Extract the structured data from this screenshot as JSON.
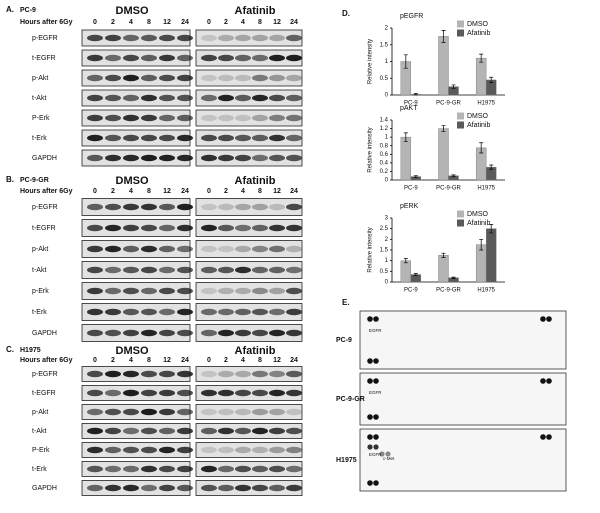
{
  "blot_panels": [
    {
      "letter": "A.",
      "cell_line": "PC-9",
      "hours_label": "Hours after 6Gy",
      "groups": [
        {
          "name": "DMSO",
          "hours": [
            "0",
            "2",
            "4",
            "8",
            "12",
            "24"
          ]
        },
        {
          "name": "Afatinib",
          "hours": [
            "0",
            "2",
            "4",
            "8",
            "12",
            "24"
          ]
        }
      ],
      "rows": [
        "p-EGFR",
        "t-EGFR",
        "p-Akt",
        "t-Akt",
        "P-Erk",
        "t-Erk",
        "GAPDH"
      ]
    },
    {
      "letter": "B.",
      "cell_line": "PC-9-GR",
      "hours_label": "Hours after 6Gy",
      "groups": [
        {
          "name": "DMSO",
          "hours": [
            "0",
            "2",
            "4",
            "8",
            "12",
            "24"
          ]
        },
        {
          "name": "Afatinib",
          "hours": [
            "0",
            "2",
            "4",
            "8",
            "12",
            "24"
          ]
        }
      ],
      "rows": [
        "p-EGFR",
        "t-EGFR",
        "p-Akt",
        "t-Akt",
        "p-Erk",
        "t-Erk",
        "GAPDH"
      ]
    },
    {
      "letter": "C.",
      "cell_line": "H1975",
      "hours_label": "Hours after 6Gy",
      "groups": [
        {
          "name": "DMSO",
          "hours": [
            "0",
            "2",
            "4",
            "8",
            "12",
            "24"
          ]
        },
        {
          "name": "Afatinib",
          "hours": [
            "0",
            "2",
            "4",
            "8",
            "12",
            "24"
          ]
        }
      ],
      "rows": [
        "p-EGFR",
        "t-EGFR",
        "p-Akt",
        "t-Akt",
        "P-Erk",
        "t-Erk",
        "GAPDH"
      ]
    }
  ],
  "panel_d_letter": "D.",
  "chart_data": [
    {
      "type": "bar",
      "title": "pEGFR",
      "y_label": "Relative intensity",
      "categories": [
        "PC-9",
        "PC-9-GR",
        "H1975"
      ],
      "series": [
        {
          "name": "DMSO",
          "color": "#b4b4b4",
          "values": [
            1,
            1.75,
            1.1
          ],
          "errors": [
            0.2,
            0.18,
            0.12
          ]
        },
        {
          "name": "Afatinib",
          "color": "#5a5a5a",
          "values": [
            0.02,
            0.25,
            0.45
          ],
          "errors": [
            0.02,
            0.05,
            0.08
          ]
        }
      ],
      "ylim": [
        0,
        2
      ],
      "yticks": [
        0,
        0.5,
        1,
        1.5,
        2
      ]
    },
    {
      "type": "bar",
      "title": "pAKT",
      "y_label": "Relative intensity",
      "categories": [
        "PC-9",
        "PC-9-GR",
        "H1975"
      ],
      "series": [
        {
          "name": "DMSO",
          "color": "#b4b4b4",
          "values": [
            1,
            1.2,
            0.75
          ],
          "errors": [
            0.1,
            0.07,
            0.12
          ]
        },
        {
          "name": "Afatinib",
          "color": "#5a5a5a",
          "values": [
            0.08,
            0.1,
            0.3
          ],
          "errors": [
            0.02,
            0.02,
            0.05
          ]
        }
      ],
      "ylim": [
        0,
        1.4
      ],
      "yticks": [
        0,
        0.2,
        0.4,
        0.6,
        0.8,
        1,
        1.2,
        1.4
      ]
    },
    {
      "type": "bar",
      "title": "pERK",
      "y_label": "Relative intensity",
      "categories": [
        "PC-9",
        "PC-9-GR",
        "H1975"
      ],
      "series": [
        {
          "name": "DMSO",
          "color": "#b4b4b4",
          "values": [
            1,
            1.25,
            1.75
          ],
          "errors": [
            0.1,
            0.1,
            0.25
          ]
        },
        {
          "name": "Afatinib",
          "color": "#5a5a5a",
          "values": [
            0.35,
            0.2,
            2.5
          ],
          "errors": [
            0.05,
            0.03,
            0.2
          ]
        }
      ],
      "ylim": [
        0,
        3
      ],
      "yticks": [
        0,
        0.5,
        1,
        1.5,
        2,
        2.5,
        3
      ]
    }
  ],
  "array_panel": {
    "letter": "E.",
    "rows": [
      {
        "cell_line": "PC-9",
        "spots": [
          "EGFR"
        ]
      },
      {
        "cell_line": "PC-9-GR",
        "spots": [
          "EGFR"
        ]
      },
      {
        "cell_line": "H1975",
        "spots": [
          "EGFR",
          "c-Met"
        ]
      }
    ]
  }
}
